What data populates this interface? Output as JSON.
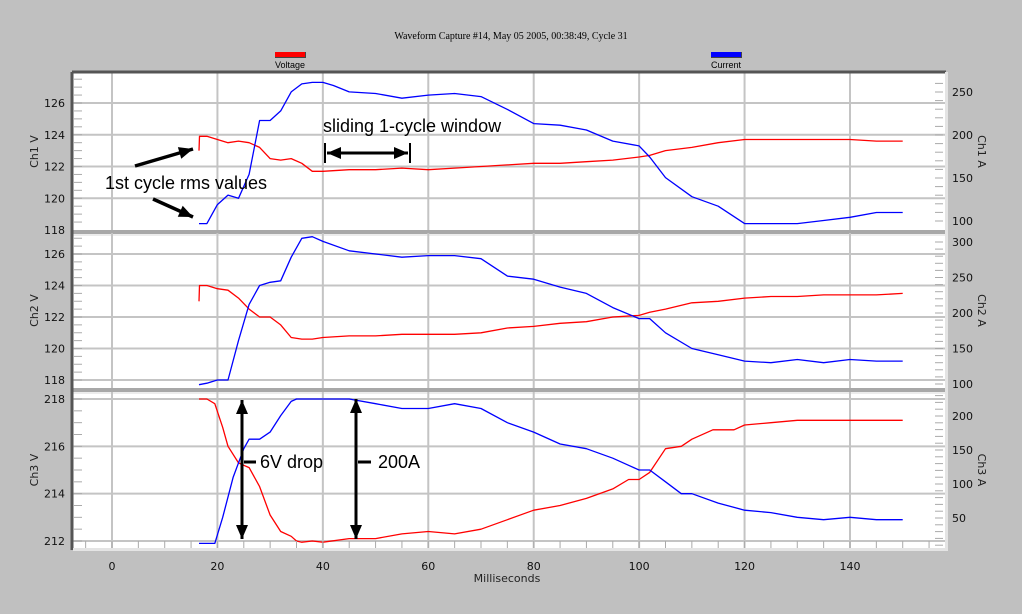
{
  "title": "Waveform Capture #14, May 05 2005, 00:38:49,  Cycle 31",
  "legend": [
    {
      "label": "Voltage",
      "color": "#ff0000"
    },
    {
      "label": "Current",
      "color": "#0000ff"
    }
  ],
  "xlabel": "Milliseconds",
  "annotations": {
    "first_cycle": "1st cycle rms values",
    "sliding_window": "sliding 1-cycle window",
    "drop": "6V drop",
    "current_step": "200A"
  },
  "chart_data": {
    "type": "line",
    "title": "Waveform Capture #14, May 05 2005, 00:38:49,  Cycle 31",
    "xlabel": "Milliseconds",
    "xlim": [
      -7,
      159
    ],
    "xticks": [
      0,
      20,
      40,
      60,
      80,
      100,
      120,
      140
    ],
    "grid": true,
    "legend_position": "top",
    "panels": [
      {
        "name": "Ch1",
        "ylabel_left": "Ch1 V",
        "ylabel_right": "Ch1 A",
        "yticks_left": [
          118,
          120,
          122,
          124,
          126
        ],
        "ylim_left": [
          117.8,
          127.9
        ],
        "yticks_right": [
          100,
          150,
          200,
          250
        ],
        "ylim_right": [
          89,
          276
        ],
        "series": [
          {
            "name": "Voltage",
            "axis": "left",
            "color": "#ff0000",
            "x": [
              16.5,
              16.6,
              18,
              20,
              22,
              24,
              26,
              28,
              30,
              32,
              34,
              36,
              38,
              40,
              45,
              50,
              55,
              60,
              65,
              70,
              75,
              80,
              85,
              90,
              95,
              100,
              102,
              105,
              110,
              115,
              120,
              125,
              130,
              135,
              140,
              145,
              150
            ],
            "y": [
              123.0,
              123.9,
              123.9,
              123.7,
              123.5,
              123.6,
              123.5,
              123.2,
              122.5,
              122.4,
              122.5,
              122.2,
              121.7,
              121.7,
              121.8,
              121.8,
              121.9,
              121.8,
              121.9,
              122.0,
              122.1,
              122.2,
              122.2,
              122.3,
              122.4,
              122.6,
              122.7,
              123.0,
              123.2,
              123.5,
              123.7,
              123.7,
              123.7,
              123.7,
              123.7,
              123.6,
              123.6
            ]
          },
          {
            "name": "Current",
            "axis": "left",
            "color": "#0000ff",
            "x": [
              16.5,
              18,
              20,
              22,
              24,
              26,
              28,
              30,
              32,
              34,
              36,
              38,
              40,
              42,
              45,
              50,
              55,
              60,
              65,
              70,
              75,
              80,
              85,
              90,
              95,
              100,
              102,
              105,
              110,
              115,
              120,
              125,
              130,
              135,
              140,
              145,
              150
            ],
            "y": [
              118.4,
              118.4,
              119.6,
              120.2,
              120.0,
              121.5,
              124.9,
              124.9,
              125.5,
              126.7,
              127.2,
              127.3,
              127.3,
              127.1,
              126.7,
              126.6,
              126.3,
              126.5,
              126.6,
              126.4,
              125.6,
              124.7,
              124.6,
              124.3,
              123.6,
              123.3,
              122.6,
              121.3,
              120.1,
              119.5,
              118.4,
              118.4,
              118.4,
              118.6,
              118.8,
              119.1,
              119.1
            ]
          }
        ]
      },
      {
        "name": "Ch2",
        "ylabel_left": "Ch2 V",
        "ylabel_right": "Ch2 A",
        "yticks_left": [
          118,
          120,
          122,
          124,
          126
        ],
        "ylim_left": [
          117.6,
          127.5
        ],
        "yticks_right": [
          100,
          150,
          200,
          250,
          300
        ],
        "ylim_right": [
          96,
          307
        ],
        "series": [
          {
            "name": "Voltage",
            "axis": "left",
            "color": "#ff0000",
            "x": [
              16.5,
              16.6,
              18,
              20,
              22,
              24,
              26,
              28,
              30,
              32,
              34,
              36,
              38,
              40,
              45,
              50,
              55,
              60,
              65,
              70,
              75,
              80,
              85,
              90,
              95,
              100,
              102,
              105,
              110,
              115,
              120,
              125,
              130,
              135,
              140,
              145,
              150
            ],
            "y": [
              123.0,
              124.0,
              124.0,
              123.8,
              123.7,
              123.2,
              122.5,
              122.0,
              122.0,
              121.5,
              120.7,
              120.6,
              120.6,
              120.7,
              120.8,
              120.8,
              120.9,
              120.9,
              120.9,
              121.0,
              121.3,
              121.4,
              121.6,
              121.7,
              122.0,
              122.1,
              122.3,
              122.5,
              122.9,
              123.0,
              123.2,
              123.3,
              123.3,
              123.4,
              123.4,
              123.4,
              123.5
            ]
          },
          {
            "name": "Current",
            "axis": "left",
            "color": "#0000ff",
            "x": [
              16.5,
              18,
              20,
              22,
              24,
              26,
              28,
              30,
              32,
              34,
              36,
              38,
              40,
              45,
              50,
              55,
              60,
              65,
              70,
              75,
              80,
              85,
              90,
              95,
              100,
              102,
              105,
              110,
              115,
              120,
              125,
              130,
              135,
              140,
              145,
              150
            ],
            "y": [
              117.7,
              117.8,
              118.0,
              118.0,
              120.5,
              122.8,
              124.0,
              124.2,
              124.3,
              125.8,
              127.0,
              127.1,
              126.8,
              126.2,
              126.0,
              125.8,
              125.9,
              125.9,
              125.7,
              124.6,
              124.4,
              123.9,
              123.5,
              122.6,
              121.9,
              121.9,
              121.0,
              120.0,
              119.6,
              119.2,
              119.1,
              119.3,
              119.1,
              119.3,
              119.2,
              119.2
            ]
          }
        ]
      },
      {
        "name": "Ch3",
        "ylabel_left": "Ch3 V",
        "ylabel_right": "Ch3 A",
        "yticks_left": [
          212,
          214,
          216,
          218
        ],
        "ylim_left": [
          211.7,
          218.2
        ],
        "yticks_right": [
          50,
          100,
          150,
          200
        ],
        "ylim_right": [
          15,
          238
        ],
        "series": [
          {
            "name": "Voltage",
            "axis": "left",
            "color": "#ff0000",
            "x": [
              16.5,
              18,
              19.5,
              21,
              22,
              24,
              25,
              26,
              28,
              30,
              32,
              34,
              35,
              36,
              38,
              40,
              45,
              50,
              55,
              60,
              65,
              70,
              75,
              80,
              85,
              90,
              95,
              98,
              100,
              102,
              105,
              108,
              110,
              114,
              118,
              120,
              125,
              130,
              135,
              140,
              145,
              150
            ],
            "y": [
              218.0,
              218.0,
              217.8,
              216.8,
              216.0,
              215.3,
              215.2,
              215.1,
              214.3,
              213.1,
              212.4,
              212.2,
              212.0,
              211.95,
              212.0,
              211.95,
              212.1,
              212.1,
              212.3,
              212.4,
              212.3,
              212.5,
              212.9,
              213.3,
              213.5,
              213.8,
              214.2,
              214.6,
              214.6,
              214.9,
              215.9,
              216.0,
              216.3,
              216.7,
              216.7,
              216.9,
              217.0,
              217.1,
              217.1,
              217.1,
              217.1,
              217.1
            ]
          },
          {
            "name": "Current",
            "axis": "left",
            "color": "#0000ff",
            "x": [
              16.5,
              19.5,
              21,
              23,
              25,
              26,
              28,
              30,
              32,
              34,
              35,
              38,
              40,
              45,
              50,
              55,
              60,
              65,
              70,
              75,
              80,
              85,
              90,
              95,
              98,
              100,
              102,
              105,
              108,
              110,
              115,
              120,
              125,
              130,
              135,
              140,
              145,
              150
            ],
            "y": [
              211.9,
              211.9,
              213.0,
              214.7,
              215.9,
              216.3,
              216.3,
              216.6,
              217.3,
              217.9,
              218.0,
              218.0,
              218.0,
              218.0,
              217.8,
              217.6,
              217.6,
              217.8,
              217.6,
              217.0,
              216.6,
              216.1,
              215.9,
              215.5,
              215.2,
              215.0,
              215.0,
              214.5,
              214.0,
              214.0,
              213.6,
              213.3,
              213.2,
              213.0,
              212.9,
              213.0,
              212.9,
              212.9
            ]
          }
        ]
      }
    ]
  }
}
